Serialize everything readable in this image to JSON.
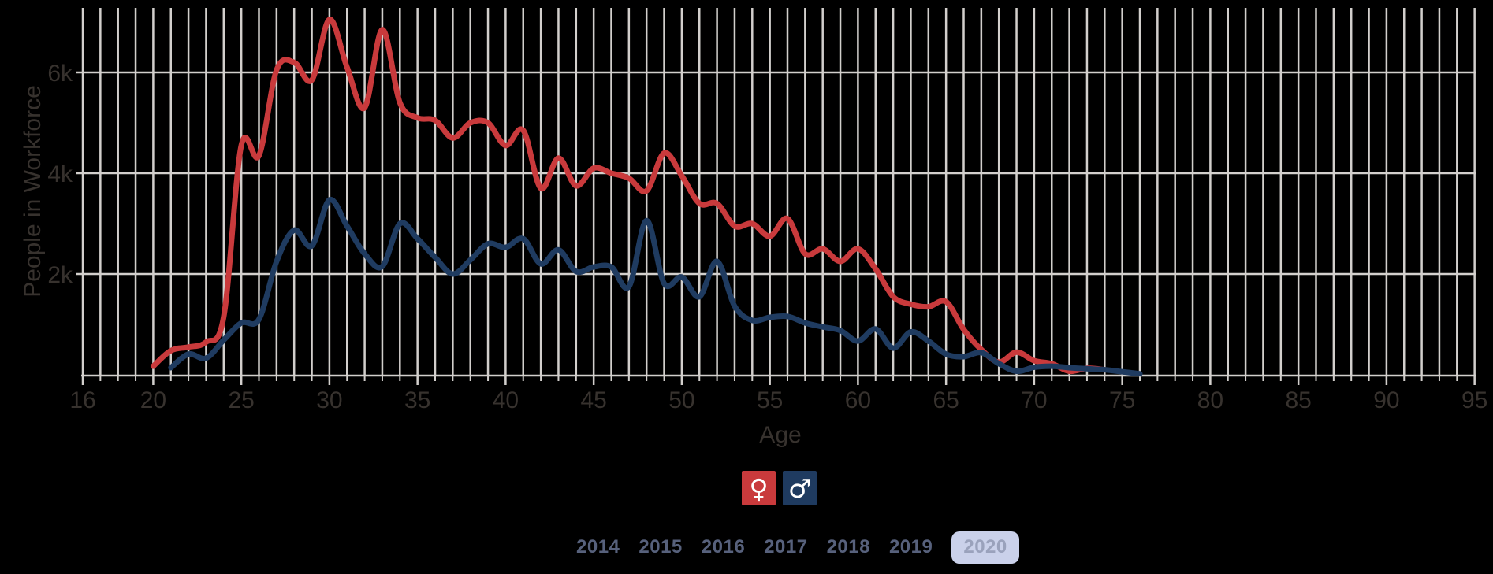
{
  "colors": {
    "background": "#000000",
    "gridline": "#d2cfcc",
    "axis_text": "#37322e",
    "female": "#c93a3c",
    "male": "#1f3b60",
    "year_text": "#57617c",
    "selected_year_bg": "#cad1ea",
    "selected_year_text": "#9aa2bc",
    "legend_symbol": "#ffffff"
  },
  "chart_data": {
    "type": "line",
    "title": "",
    "xlabel": "Age",
    "ylabel": "People in Workforce",
    "xlim": [
      16,
      95
    ],
    "ylim": [
      0,
      7300
    ],
    "grid": true,
    "x_tick_values": [
      16,
      20,
      25,
      30,
      35,
      40,
      45,
      50,
      55,
      60,
      65,
      70,
      75,
      80,
      85,
      90,
      95
    ],
    "y_ticks": [
      {
        "value": 2000,
        "label": "2k"
      },
      {
        "value": 4000,
        "label": "4k"
      },
      {
        "value": 6000,
        "label": "6k"
      }
    ],
    "series": [
      {
        "name": "female",
        "color": "#c93a3c",
        "x": [
          20,
          21,
          22,
          23,
          24,
          25,
          26,
          27,
          28,
          29,
          30,
          31,
          32,
          33,
          34,
          35,
          36,
          37,
          38,
          39,
          40,
          41,
          42,
          43,
          44,
          45,
          46,
          47,
          48,
          49,
          50,
          51,
          52,
          53,
          54,
          55,
          56,
          57,
          58,
          59,
          60,
          61,
          62,
          63,
          64,
          65,
          66,
          67,
          68,
          69,
          70,
          71,
          72,
          73,
          74
        ],
        "y": [
          170,
          480,
          550,
          650,
          1150,
          4550,
          4350,
          6050,
          6200,
          5850,
          7050,
          6100,
          5300,
          6850,
          5400,
          5100,
          5050,
          4700,
          5000,
          5000,
          4550,
          4850,
          3700,
          4300,
          3750,
          4100,
          4000,
          3900,
          3650,
          4400,
          3950,
          3400,
          3400,
          2950,
          3000,
          2750,
          3100,
          2400,
          2500,
          2250,
          2500,
          2100,
          1550,
          1400,
          1350,
          1450,
          900,
          500,
          250,
          450,
          280,
          220,
          70,
          130,
          100
        ]
      },
      {
        "name": "male",
        "color": "#1f3b60",
        "x": [
          21,
          22,
          23,
          24,
          25,
          26,
          27,
          28,
          29,
          30,
          31,
          32,
          33,
          34,
          35,
          36,
          37,
          38,
          39,
          40,
          41,
          42,
          43,
          44,
          45,
          46,
          47,
          48,
          49,
          50,
          51,
          52,
          53,
          54,
          55,
          56,
          57,
          58,
          59,
          60,
          61,
          62,
          63,
          64,
          65,
          66,
          67,
          68,
          69,
          70,
          71,
          72,
          73,
          74,
          75,
          76
        ],
        "y": [
          140,
          410,
          330,
          690,
          1030,
          1100,
          2250,
          2870,
          2560,
          3470,
          2950,
          2400,
          2150,
          3000,
          2700,
          2330,
          2000,
          2280,
          2600,
          2530,
          2700,
          2200,
          2480,
          2050,
          2140,
          2140,
          1750,
          3060,
          1810,
          1940,
          1550,
          2250,
          1360,
          1080,
          1140,
          1160,
          1030,
          950,
          880,
          670,
          910,
          530,
          850,
          670,
          410,
          360,
          440,
          220,
          70,
          150,
          170,
          140,
          120,
          100,
          60,
          20
        ]
      }
    ]
  },
  "axis_titles": {
    "y": "People in Workforce",
    "x": "Age"
  },
  "legend": {
    "female_symbol": "♀",
    "male_symbol": "♂"
  },
  "year_selector": {
    "years": [
      "2014",
      "2015",
      "2016",
      "2017",
      "2018",
      "2019",
      "2020"
    ],
    "selected": "2020"
  }
}
